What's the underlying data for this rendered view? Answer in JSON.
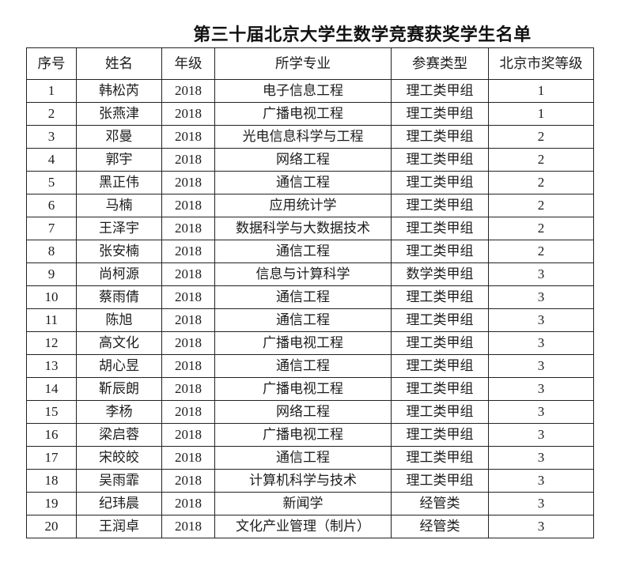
{
  "page": {
    "title": "第三十届北京大学生数学竞赛获奖学生名单"
  },
  "table": {
    "field_order": [
      "no",
      "name",
      "grade",
      "major",
      "category",
      "award"
    ],
    "columns": [
      "序号",
      "姓名",
      "年级",
      "所学专业",
      "参赛类型",
      "北京市奖等级"
    ],
    "rows": [
      {
        "no": "1",
        "name": "韩松芮",
        "grade": "2018",
        "major": "电子信息工程",
        "category": "理工类甲组",
        "award": "1"
      },
      {
        "no": "2",
        "name": "张燕津",
        "grade": "2018",
        "major": "广播电视工程",
        "category": "理工类甲组",
        "award": "1"
      },
      {
        "no": "3",
        "name": "邓曼",
        "grade": "2018",
        "major": "光电信息科学与工程",
        "category": "理工类甲组",
        "award": "2"
      },
      {
        "no": "4",
        "name": "郭宇",
        "grade": "2018",
        "major": "网络工程",
        "category": "理工类甲组",
        "award": "2"
      },
      {
        "no": "5",
        "name": "黑正伟",
        "grade": "2018",
        "major": "通信工程",
        "category": "理工类甲组",
        "award": "2"
      },
      {
        "no": "6",
        "name": "马楠",
        "grade": "2018",
        "major": "应用统计学",
        "category": "理工类甲组",
        "award": "2"
      },
      {
        "no": "7",
        "name": "王泽宇",
        "grade": "2018",
        "major": "数据科学与大数据技术",
        "category": "理工类甲组",
        "award": "2"
      },
      {
        "no": "8",
        "name": "张安楠",
        "grade": "2018",
        "major": "通信工程",
        "category": "理工类甲组",
        "award": "2"
      },
      {
        "no": "9",
        "name": "尚柯源",
        "grade": "2018",
        "major": "信息与计算科学",
        "category": "数学类甲组",
        "award": "3"
      },
      {
        "no": "10",
        "name": "蔡雨倩",
        "grade": "2018",
        "major": "通信工程",
        "category": "理工类甲组",
        "award": "3"
      },
      {
        "no": "11",
        "name": "陈旭",
        "grade": "2018",
        "major": "通信工程",
        "category": "理工类甲组",
        "award": "3"
      },
      {
        "no": "12",
        "name": "高文化",
        "grade": "2018",
        "major": "广播电视工程",
        "category": "理工类甲组",
        "award": "3"
      },
      {
        "no": "13",
        "name": "胡心昱",
        "grade": "2018",
        "major": "通信工程",
        "category": "理工类甲组",
        "award": "3"
      },
      {
        "no": "14",
        "name": "靳辰朗",
        "grade": "2018",
        "major": "广播电视工程",
        "category": "理工类甲组",
        "award": "3"
      },
      {
        "no": "15",
        "name": "李杨",
        "grade": "2018",
        "major": "网络工程",
        "category": "理工类甲组",
        "award": "3"
      },
      {
        "no": "16",
        "name": "梁启蓉",
        "grade": "2018",
        "major": "广播电视工程",
        "category": "理工类甲组",
        "award": "3"
      },
      {
        "no": "17",
        "name": "宋皎皎",
        "grade": "2018",
        "major": "通信工程",
        "category": "理工类甲组",
        "award": "3"
      },
      {
        "no": "18",
        "name": "吴雨霏",
        "grade": "2018",
        "major": "计算机科学与技术",
        "category": "理工类甲组",
        "award": "3"
      },
      {
        "no": "19",
        "name": "纪玮晨",
        "grade": "2018",
        "major": "新闻学",
        "category": "经管类",
        "award": "3"
      },
      {
        "no": "20",
        "name": "王润卓",
        "grade": "2018",
        "major": "文化产业管理（制片）",
        "category": "经管类",
        "award": "3"
      }
    ]
  }
}
